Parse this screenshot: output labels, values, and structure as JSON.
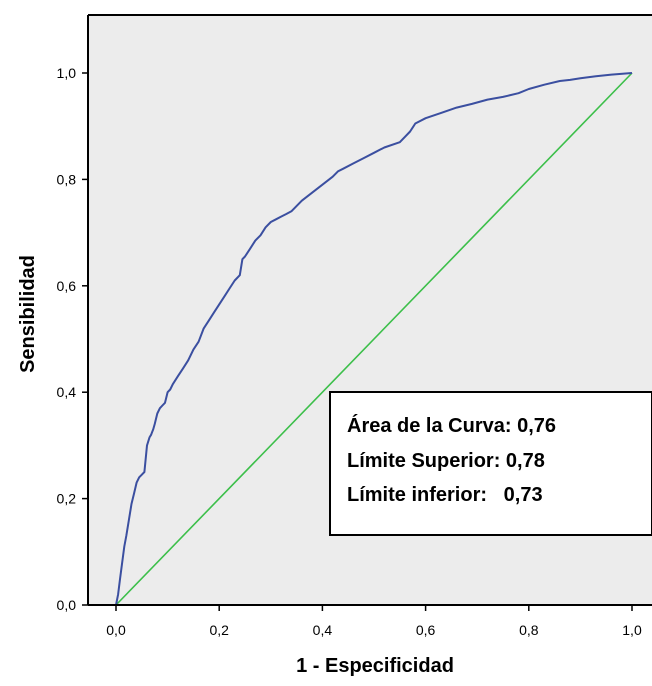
{
  "colors": {
    "plot_background": "#ececec",
    "roc_line": "#3b4fa0",
    "reference_line": "#3cbf4a",
    "axis": "#000000",
    "box_fill": "#ffffff"
  },
  "chart_data": {
    "type": "line",
    "title": "",
    "xlabel": "1 - Especificidad",
    "ylabel": "Sensibilidad",
    "xlim": [
      0,
      1
    ],
    "ylim": [
      0,
      1.1
    ],
    "grid": false,
    "x_ticks": [
      0,
      0.2,
      0.4,
      0.6,
      0.8,
      1.0
    ],
    "y_ticks": [
      0,
      0.2,
      0.4,
      0.6,
      0.8,
      1.0
    ],
    "x_tick_labels": [
      "0,0",
      "0,2",
      "0,4",
      "0,6",
      "0,8",
      "1,0"
    ],
    "y_tick_labels": [
      "0,0",
      "0,2",
      "0,4",
      "0,6",
      "0,8",
      "1,0"
    ],
    "series": [
      {
        "role": "roc",
        "x": [
          0.0,
          0.004,
          0.008,
          0.012,
          0.016,
          0.02,
          0.025,
          0.03,
          0.035,
          0.04,
          0.045,
          0.05,
          0.055,
          0.06,
          0.065,
          0.068,
          0.07,
          0.072,
          0.075,
          0.08,
          0.085,
          0.09,
          0.095,
          0.1,
          0.105,
          0.11,
          0.12,
          0.13,
          0.14,
          0.15,
          0.16,
          0.17,
          0.18,
          0.19,
          0.2,
          0.21,
          0.22,
          0.23,
          0.24,
          0.245,
          0.25,
          0.26,
          0.27,
          0.28,
          0.29,
          0.3,
          0.31,
          0.32,
          0.33,
          0.34,
          0.36,
          0.38,
          0.4,
          0.42,
          0.43,
          0.44,
          0.46,
          0.48,
          0.5,
          0.52,
          0.55,
          0.56,
          0.57,
          0.58,
          0.6,
          0.63,
          0.66,
          0.69,
          0.72,
          0.75,
          0.78,
          0.8,
          0.83,
          0.86,
          0.88,
          0.9,
          0.93,
          0.96,
          1.0
        ],
        "y": [
          0.0,
          0.02,
          0.05,
          0.08,
          0.11,
          0.13,
          0.16,
          0.19,
          0.21,
          0.23,
          0.24,
          0.245,
          0.25,
          0.3,
          0.315,
          0.32,
          0.325,
          0.33,
          0.34,
          0.36,
          0.37,
          0.375,
          0.38,
          0.4,
          0.405,
          0.415,
          0.43,
          0.445,
          0.46,
          0.48,
          0.495,
          0.52,
          0.535,
          0.55,
          0.565,
          0.58,
          0.595,
          0.61,
          0.62,
          0.65,
          0.655,
          0.67,
          0.685,
          0.695,
          0.71,
          0.72,
          0.725,
          0.73,
          0.735,
          0.74,
          0.76,
          0.775,
          0.79,
          0.805,
          0.815,
          0.82,
          0.83,
          0.84,
          0.85,
          0.86,
          0.87,
          0.88,
          0.89,
          0.905,
          0.915,
          0.925,
          0.935,
          0.942,
          0.95,
          0.955,
          0.962,
          0.97,
          0.978,
          0.985,
          0.987,
          0.99,
          0.994,
          0.997,
          1.0
        ]
      },
      {
        "role": "reference",
        "x": [
          0,
          1
        ],
        "y": [
          0,
          1
        ]
      }
    ],
    "annotations": [
      "Área de la Curva: 0,76",
      "Límite Superior: 0,78",
      "Límite inferior:   0,73"
    ]
  }
}
